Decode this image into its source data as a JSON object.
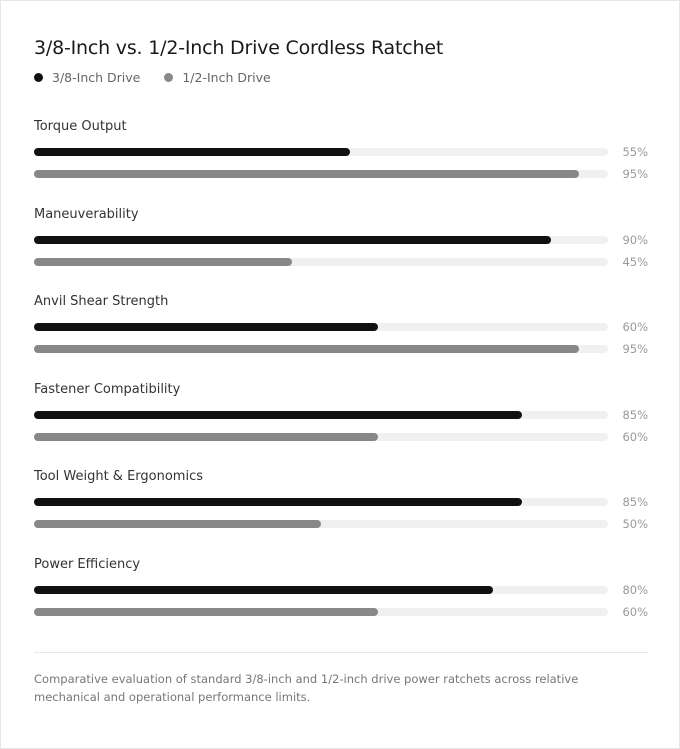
{
  "chart_data": {
    "type": "bar",
    "orientation": "horizontal",
    "title": "3/8-Inch vs. 1/2-Inch Drive Cordless Ratchet",
    "categories": [
      "Torque Output",
      "Maneuverability",
      "Anvil Shear Strength",
      "Fastener Compatibility",
      "Tool Weight & Ergonomics",
      "Power Efficiency"
    ],
    "series": [
      {
        "name": "3/8-Inch Drive",
        "color": "#111111",
        "values": [
          55,
          90,
          60,
          85,
          85,
          80
        ]
      },
      {
        "name": "1/2-Inch Drive",
        "color": "#888888",
        "values": [
          95,
          45,
          95,
          60,
          50,
          60
        ]
      }
    ],
    "value_suffix": "%",
    "xlim": [
      0,
      100
    ],
    "legend_position": "top-left",
    "grid": false
  },
  "footer": {
    "note": "Comparative evaluation of standard 3/8-inch and 1/2-inch drive power ratchets across relative mechanical and operational performance limits."
  },
  "colors": {
    "track": "#f0f0f0",
    "accent_dark": "#111111",
    "accent_gray": "#888888"
  }
}
